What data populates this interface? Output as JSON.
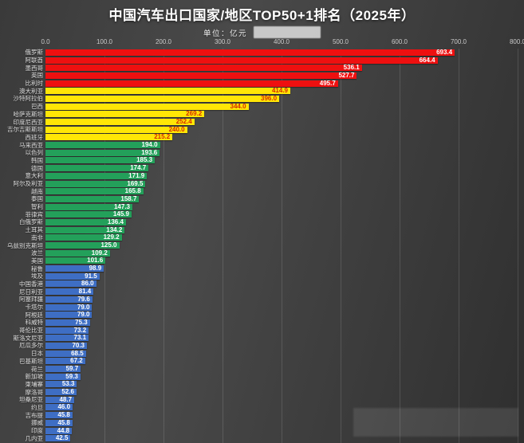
{
  "colors": {
    "background_light": "#4a4a4a",
    "background_dark": "#2f2f2f",
    "grid": "rgba(255,255,255,0.13)"
  },
  "chart_data": {
    "type": "bar",
    "orientation": "horizontal",
    "title": "中国汽车出口国家/地区TOP50+1排名（2025年）",
    "unit_label": "单位：亿元",
    "xlim": [
      0,
      800
    ],
    "x_ticks": [
      "0.0",
      "100.0",
      "200.0",
      "300.0",
      "400.0",
      "500.0",
      "600.0",
      "700.0",
      "800.0"
    ],
    "grid": true,
    "tier_colors": {
      "red": "#ee1010",
      "yellow": "#ffe606",
      "green": "#23a05a",
      "blue": "#3e6ec4"
    },
    "value_text_colors": {
      "red": "#ffffff",
      "yellow": "#d42b00",
      "green": "#ffffff",
      "blue": "#ffffff"
    },
    "bars": [
      {
        "label": "俄罗斯",
        "value": 693.4,
        "tier": "red"
      },
      {
        "label": "阿联酋",
        "value": 664.4,
        "tier": "red"
      },
      {
        "label": "墨西哥",
        "value": 536.1,
        "tier": "red"
      },
      {
        "label": "英国",
        "value": 527.7,
        "tier": "red"
      },
      {
        "label": "比利时",
        "value": 495.7,
        "tier": "red"
      },
      {
        "label": "澳大利亚",
        "value": 414.9,
        "tier": "yellow"
      },
      {
        "label": "沙特阿拉伯",
        "value": 396.0,
        "tier": "yellow"
      },
      {
        "label": "巴西",
        "value": 344.0,
        "tier": "yellow"
      },
      {
        "label": "哈萨克斯坦",
        "value": 269.2,
        "tier": "yellow"
      },
      {
        "label": "印度尼西亚",
        "value": 252.4,
        "tier": "yellow"
      },
      {
        "label": "吉尔吉斯斯坦",
        "value": 240.0,
        "tier": "yellow"
      },
      {
        "label": "西班牙",
        "value": 215.2,
        "tier": "yellow"
      },
      {
        "label": "马来西亚",
        "value": 194.0,
        "tier": "green"
      },
      {
        "label": "以色列",
        "value": 193.6,
        "tier": "green"
      },
      {
        "label": "韩国",
        "value": 185.3,
        "tier": "green"
      },
      {
        "label": "德国",
        "value": 174.7,
        "tier": "green"
      },
      {
        "label": "意大利",
        "value": 171.9,
        "tier": "green"
      },
      {
        "label": "阿尔及利亚",
        "value": 169.5,
        "tier": "green"
      },
      {
        "label": "越南",
        "value": 165.8,
        "tier": "green"
      },
      {
        "label": "泰国",
        "value": 158.7,
        "tier": "green"
      },
      {
        "label": "智利",
        "value": 147.3,
        "tier": "green"
      },
      {
        "label": "菲律宾",
        "value": 145.9,
        "tier": "green"
      },
      {
        "label": "白俄罗斯",
        "value": 136.4,
        "tier": "green"
      },
      {
        "label": "土耳其",
        "value": 134.2,
        "tier": "green"
      },
      {
        "label": "南非",
        "value": 129.2,
        "tier": "green"
      },
      {
        "label": "乌兹别克斯坦",
        "value": 125.0,
        "tier": "green"
      },
      {
        "label": "波兰",
        "value": 109.2,
        "tier": "green"
      },
      {
        "label": "美国",
        "value": 101.6,
        "tier": "green"
      },
      {
        "label": "秘鲁",
        "value": 98.9,
        "tier": "blue"
      },
      {
        "label": "埃及",
        "value": 91.5,
        "tier": "blue"
      },
      {
        "label": "中国香港",
        "value": 86.0,
        "tier": "blue"
      },
      {
        "label": "尼日利亚",
        "value": 81.4,
        "tier": "blue"
      },
      {
        "label": "阿塞拜疆",
        "value": 79.6,
        "tier": "blue"
      },
      {
        "label": "卡塔尔",
        "value": 79.0,
        "tier": "blue"
      },
      {
        "label": "阿根廷",
        "value": 79.0,
        "tier": "blue"
      },
      {
        "label": "科威特",
        "value": 75.3,
        "tier": "blue"
      },
      {
        "label": "哥伦比亚",
        "value": 73.2,
        "tier": "blue"
      },
      {
        "label": "斯洛文尼亚",
        "value": 73.1,
        "tier": "blue"
      },
      {
        "label": "厄瓜多尔",
        "value": 70.3,
        "tier": "blue"
      },
      {
        "label": "日本",
        "value": 68.5,
        "tier": "blue"
      },
      {
        "label": "巴基斯坦",
        "value": 67.2,
        "tier": "blue"
      },
      {
        "label": "荷兰",
        "value": 59.7,
        "tier": "blue"
      },
      {
        "label": "新加坡",
        "value": 59.3,
        "tier": "blue"
      },
      {
        "label": "柬埔寨",
        "value": 53.3,
        "tier": "blue"
      },
      {
        "label": "摩洛哥",
        "value": 52.6,
        "tier": "blue"
      },
      {
        "label": "坦桑尼亚",
        "value": 48.7,
        "tier": "blue"
      },
      {
        "label": "约旦",
        "value": 46.0,
        "tier": "blue"
      },
      {
        "label": "吉布提",
        "value": 45.8,
        "tier": "blue"
      },
      {
        "label": "挪威",
        "value": 45.8,
        "tier": "blue"
      },
      {
        "label": "印度",
        "value": 44.8,
        "tier": "blue"
      },
      {
        "label": "几内亚",
        "value": 42.5,
        "tier": "blue"
      }
    ]
  }
}
